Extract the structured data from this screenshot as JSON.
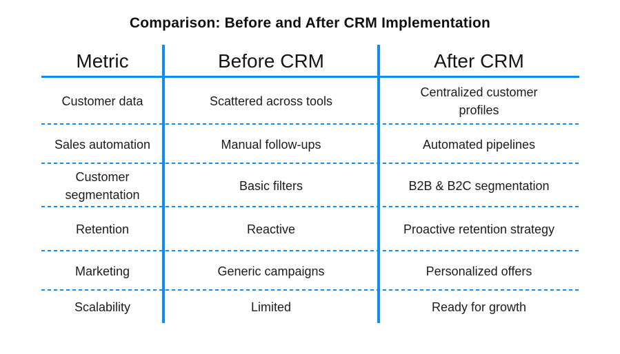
{
  "title": "Comparison: Before and After CRM Implementation",
  "colors": {
    "line_blue": "#0b8cff",
    "text": "#1b1b1b",
    "background": "#ffffff"
  },
  "chart_data": {
    "type": "table",
    "title": "Comparison: Before and After CRM Implementation",
    "columns": [
      "Metric",
      "Before CRM",
      "After CRM"
    ],
    "rows": [
      [
        "Customer data",
        "Scattered across tools",
        "Centralized customer profiles"
      ],
      [
        "Sales automation",
        "Manual follow-ups",
        "Automated pipelines"
      ],
      [
        "Customer segmentation",
        "Basic filters",
        "B2B & B2C segmentation"
      ],
      [
        "Retention",
        "Reactive",
        "Proactive retention strategy"
      ],
      [
        "Marketing",
        "Generic campaigns",
        "Personalized offers"
      ],
      [
        "Scalability",
        "Limited",
        "Ready for growth"
      ]
    ],
    "layout": {
      "column_divider_style": "solid",
      "header_divider_style": "solid",
      "row_divider_style": "dashed",
      "outer_border": "none"
    }
  }
}
